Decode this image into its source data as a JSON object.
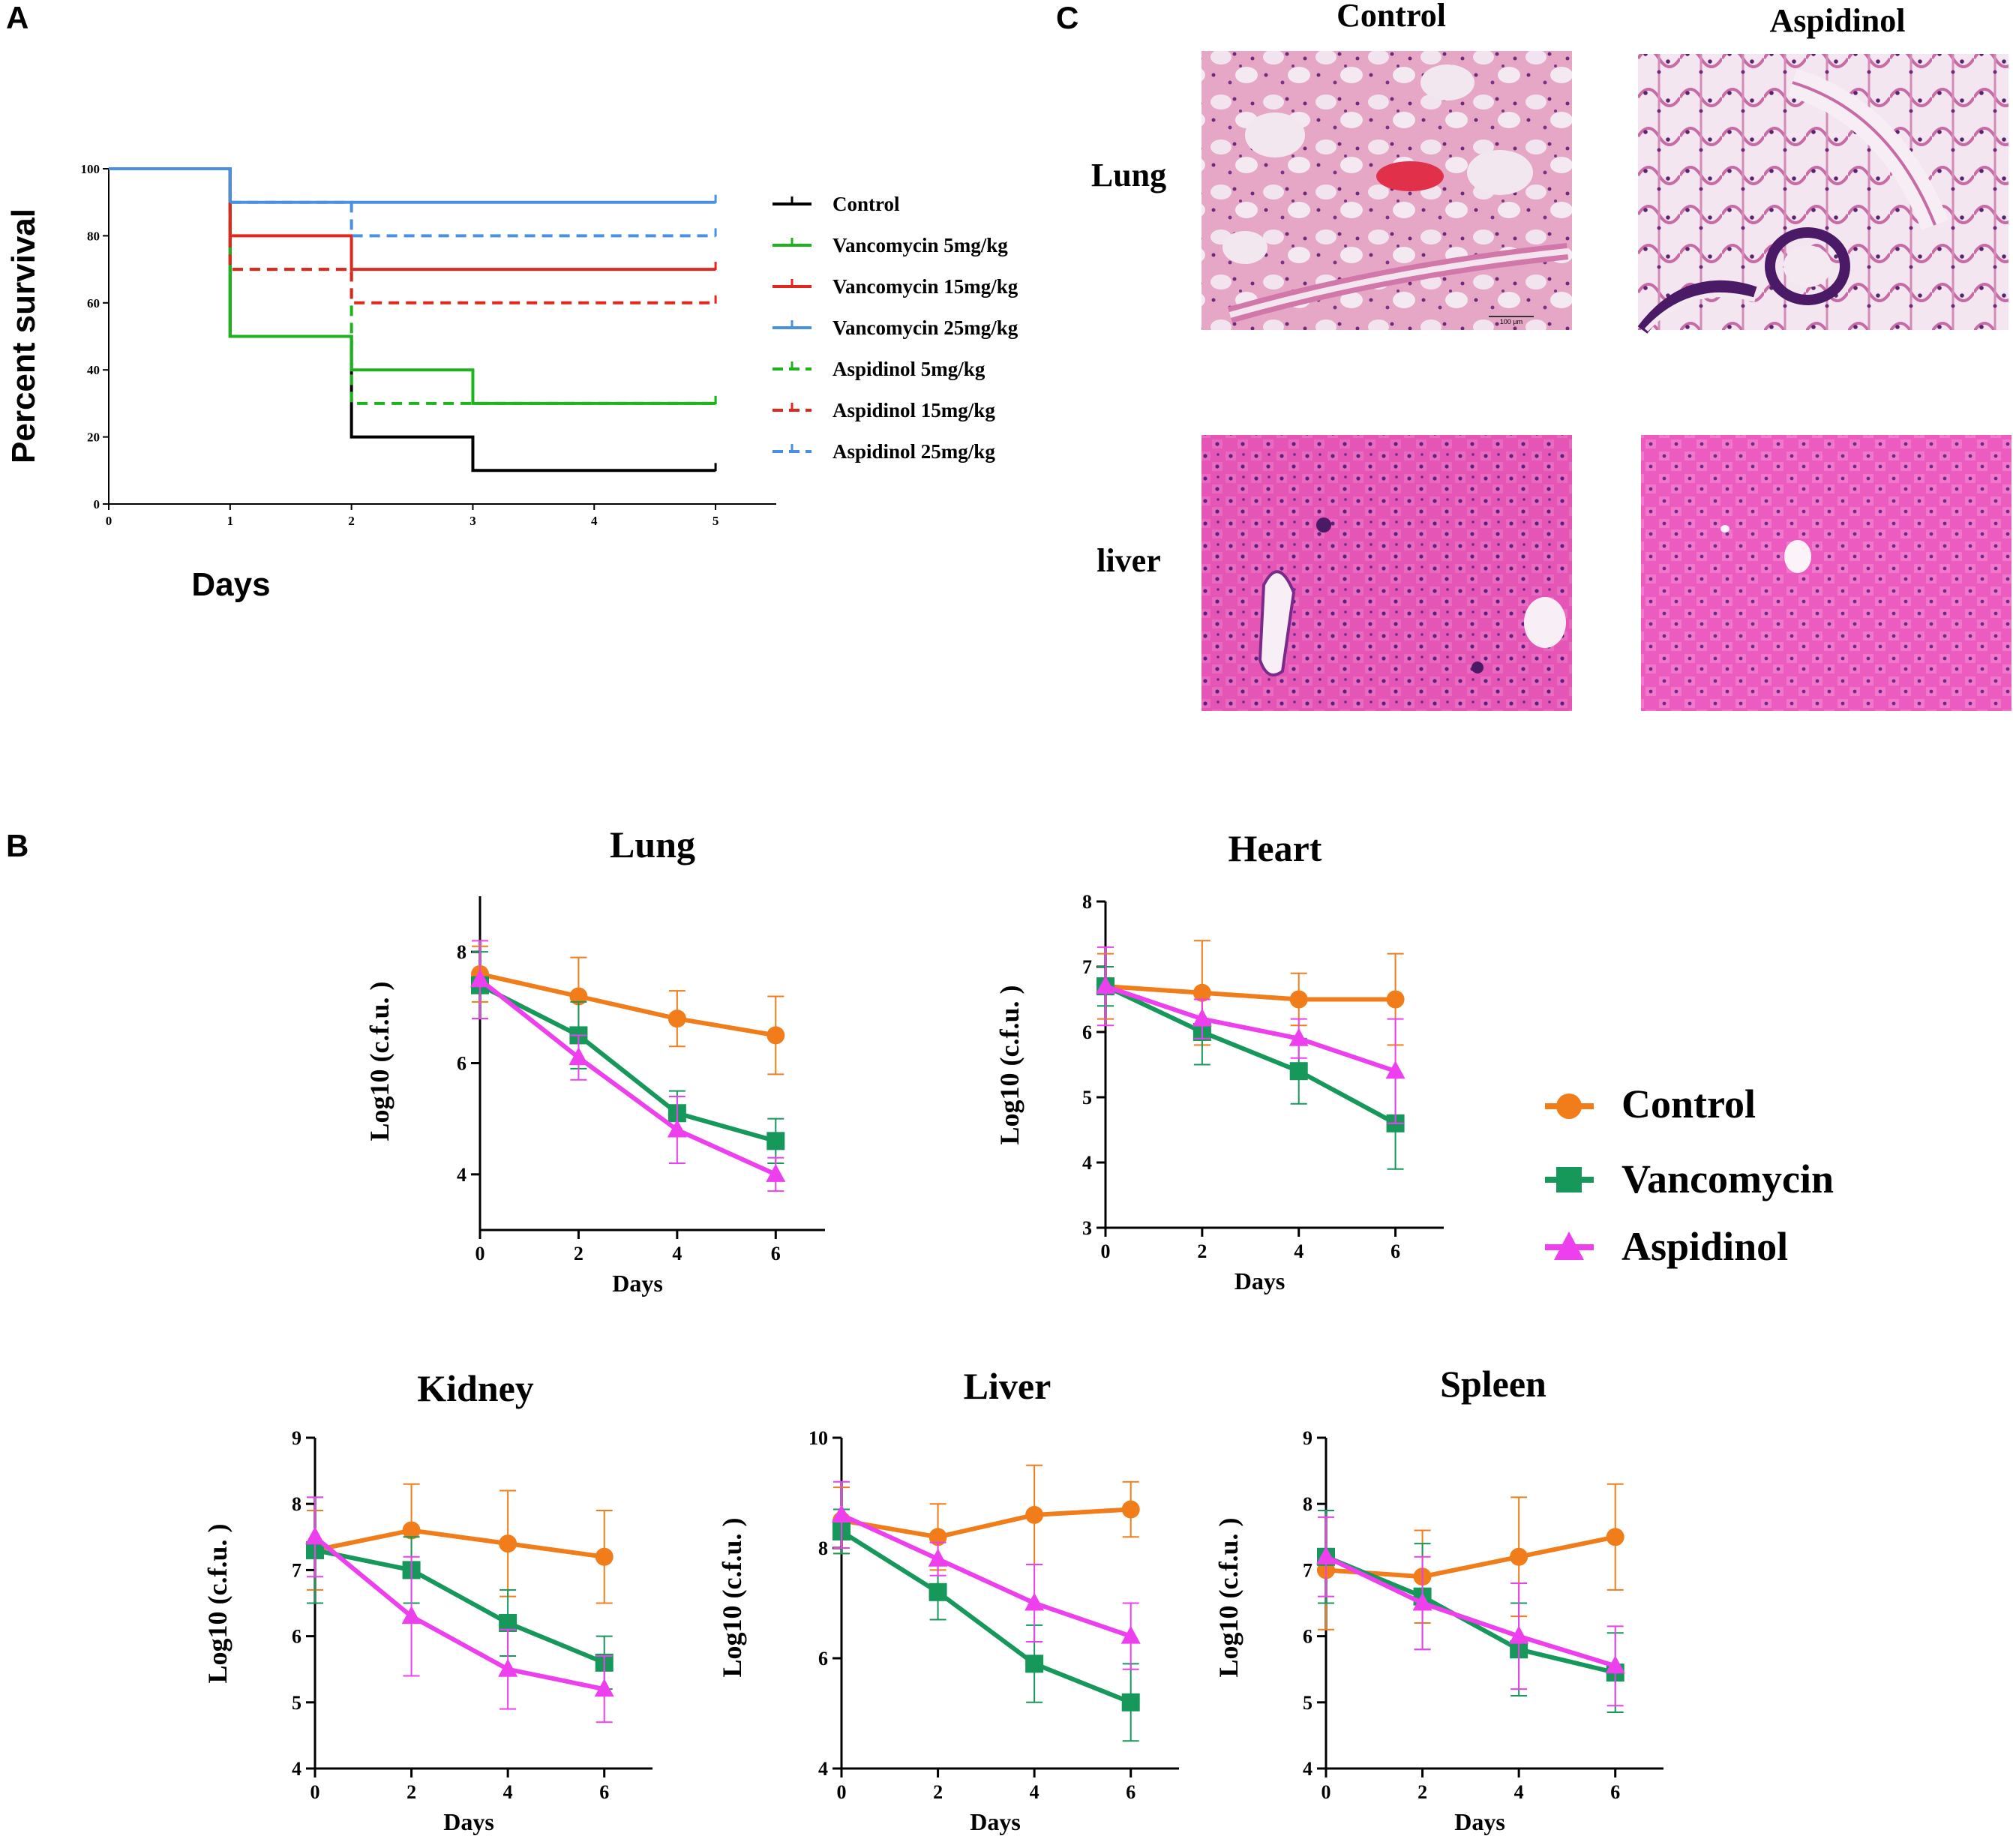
{
  "panels": {
    "a": "A",
    "b": "B",
    "c": "C"
  },
  "histology": {
    "col_control": "Control",
    "col_aspidinol": "Aspidinol",
    "row_lung": "Lung",
    "row_liver": "liver",
    "scale_bar": "100 µm"
  },
  "colors": {
    "black": "#000000",
    "green": "#1db31d",
    "red": "#e0261d",
    "blue": "#4a90e2",
    "control": "#f07d1a",
    "vancomycin": "#16985a",
    "aspidinol": "#ee3fee"
  },
  "legend_b": [
    "Control",
    "Vancomycin",
    "Aspidinol"
  ],
  "chart_data": [
    {
      "id": "survival",
      "type": "line",
      "title": "",
      "xlabel": "Days",
      "ylabel": "Percent survival",
      "xlim": [
        0,
        5.5
      ],
      "ylim": [
        0,
        100
      ],
      "xticks": [
        0,
        1,
        2,
        3,
        4,
        5
      ],
      "yticks": [
        0,
        20,
        40,
        60,
        80,
        100
      ],
      "series": [
        {
          "name": "Control",
          "dash": false,
          "color": "#000000",
          "x": [
            0,
            1,
            2,
            3,
            5
          ],
          "y": [
            100,
            50,
            20,
            10,
            10
          ]
        },
        {
          "name": "Vancomycin 5mg/kg",
          "dash": false,
          "color": "#1db31d",
          "x": [
            0,
            1,
            2,
            3,
            5
          ],
          "y": [
            100,
            50,
            40,
            30,
            30
          ]
        },
        {
          "name": "Vancomycin 15mg/kg",
          "dash": false,
          "color": "#e0261d",
          "x": [
            0,
            1,
            2,
            5
          ],
          "y": [
            100,
            80,
            70,
            70
          ]
        },
        {
          "name": "Vancomycin 25mg/kg",
          "dash": false,
          "color": "#4a90e2",
          "x": [
            0,
            1,
            5
          ],
          "y": [
            100,
            90,
            90
          ]
        },
        {
          "name": "Aspidinol 5mg/kg",
          "dash": true,
          "color": "#1db31d",
          "x": [
            0,
            1,
            2,
            5
          ],
          "y": [
            100,
            70,
            30,
            30
          ]
        },
        {
          "name": "Aspidinol 15mg/kg",
          "dash": true,
          "color": "#e0261d",
          "x": [
            0,
            1,
            2,
            5
          ],
          "y": [
            100,
            70,
            60,
            60
          ]
        },
        {
          "name": "Aspidinol 25mg/kg",
          "dash": true,
          "color": "#4a90e2",
          "x": [
            0,
            1,
            2,
            5
          ],
          "y": [
            100,
            90,
            80,
            80
          ]
        }
      ]
    },
    {
      "id": "lung",
      "type": "line",
      "title": "Lung",
      "xlabel": "Days",
      "ylabel": "Log10 (c.f.u. )",
      "xlim": [
        0,
        7
      ],
      "ylim": [
        3,
        9
      ],
      "xticks": [
        0,
        2,
        4,
        6
      ],
      "yticks": [
        4,
        6,
        8
      ],
      "categories": [
        0,
        2,
        4,
        6
      ],
      "series": [
        {
          "name": "Control",
          "values": [
            7.6,
            7.2,
            6.8,
            6.5
          ],
          "err": [
            0.5,
            0.7,
            0.5,
            0.7
          ]
        },
        {
          "name": "Vancomycin",
          "values": [
            7.4,
            6.5,
            5.1,
            4.6
          ],
          "err": [
            0.6,
            0.6,
            0.4,
            0.4
          ]
        },
        {
          "name": "Aspidinol",
          "values": [
            7.5,
            6.1,
            4.8,
            4.0
          ],
          "err": [
            0.7,
            0.4,
            0.6,
            0.3
          ]
        }
      ]
    },
    {
      "id": "heart",
      "type": "line",
      "title": "Heart",
      "xlabel": "Days",
      "ylabel": "Log10 (c.f.u. )",
      "xlim": [
        0,
        7
      ],
      "ylim": [
        3,
        8
      ],
      "xticks": [
        0,
        2,
        4,
        6
      ],
      "yticks": [
        3,
        4,
        5,
        6,
        7,
        8
      ],
      "categories": [
        0,
        2,
        4,
        6
      ],
      "series": [
        {
          "name": "Control",
          "values": [
            6.7,
            6.6,
            6.5,
            6.5
          ],
          "err": [
            0.5,
            0.8,
            0.4,
            0.7
          ]
        },
        {
          "name": "Vancomycin",
          "values": [
            6.7,
            6.0,
            5.4,
            4.6
          ],
          "err": [
            0.3,
            0.5,
            0.5,
            0.7
          ]
        },
        {
          "name": "Aspidinol",
          "values": [
            6.7,
            6.2,
            5.9,
            5.4
          ],
          "err": [
            0.6,
            0.3,
            0.3,
            0.8
          ]
        }
      ]
    },
    {
      "id": "kidney",
      "type": "line",
      "title": "Kidney",
      "xlabel": "Days",
      "ylabel": "Log10 (c.f.u. )",
      "xlim": [
        0,
        7
      ],
      "ylim": [
        4,
        9
      ],
      "xticks": [
        0,
        2,
        4,
        6
      ],
      "yticks": [
        4,
        5,
        6,
        7,
        8,
        9
      ],
      "categories": [
        0,
        2,
        4,
        6
      ],
      "series": [
        {
          "name": "Control",
          "values": [
            7.3,
            7.6,
            7.4,
            7.2
          ],
          "err": [
            0.6,
            0.7,
            0.8,
            0.7
          ]
        },
        {
          "name": "Vancomycin",
          "values": [
            7.3,
            7.0,
            6.2,
            5.6
          ],
          "err": [
            0.8,
            0.5,
            0.5,
            0.4
          ]
        },
        {
          "name": "Aspidinol",
          "values": [
            7.5,
            6.3,
            5.5,
            5.2
          ],
          "err": [
            0.6,
            0.9,
            0.6,
            0.5
          ]
        }
      ]
    },
    {
      "id": "liver",
      "type": "line",
      "title": "Liver",
      "xlabel": "Days",
      "ylabel": "Log10 (c.f.u. )",
      "xlim": [
        0,
        7
      ],
      "ylim": [
        4,
        10
      ],
      "xticks": [
        0,
        2,
        4,
        6
      ],
      "yticks": [
        4,
        6,
        8,
        10
      ],
      "categories": [
        0,
        2,
        4,
        6
      ],
      "series": [
        {
          "name": "Control",
          "values": [
            8.5,
            8.2,
            8.6,
            8.7
          ],
          "err": [
            0.6,
            0.6,
            0.9,
            0.5
          ]
        },
        {
          "name": "Vancomycin",
          "values": [
            8.3,
            7.2,
            5.9,
            5.2
          ],
          "err": [
            0.4,
            0.5,
            0.7,
            0.7
          ]
        },
        {
          "name": "Aspidinol",
          "values": [
            8.6,
            7.8,
            7.0,
            6.4
          ],
          "err": [
            0.6,
            0.3,
            0.7,
            0.6
          ]
        }
      ]
    },
    {
      "id": "spleen",
      "type": "line",
      "title": "Spleen",
      "xlabel": "Days",
      "ylabel": "Log10 (c.f.u. )",
      "xlim": [
        0,
        7
      ],
      "ylim": [
        4,
        9
      ],
      "xticks": [
        0,
        2,
        4,
        6
      ],
      "yticks": [
        4,
        5,
        6,
        7,
        8,
        9
      ],
      "categories": [
        0,
        2,
        4,
        6
      ],
      "series": [
        {
          "name": "Control",
          "values": [
            7.0,
            6.9,
            7.2,
            7.5
          ],
          "err": [
            0.9,
            0.7,
            0.9,
            0.8
          ]
        },
        {
          "name": "Vancomycin",
          "values": [
            7.2,
            6.6,
            5.8,
            5.45
          ],
          "err": [
            0.7,
            0.8,
            0.7,
            0.6
          ]
        },
        {
          "name": "Aspidinol",
          "values": [
            7.2,
            6.5,
            6.0,
            5.55
          ],
          "err": [
            0.6,
            0.7,
            0.8,
            0.6
          ]
        }
      ]
    }
  ]
}
